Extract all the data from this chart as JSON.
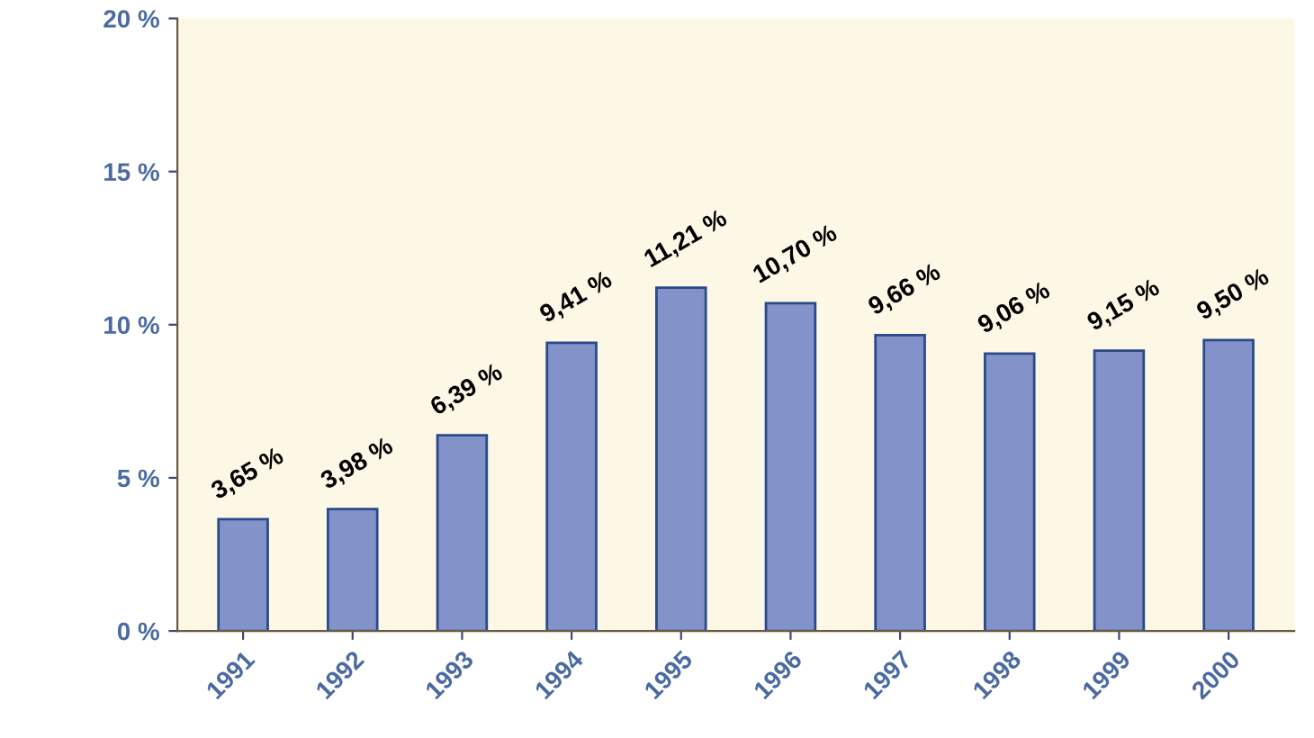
{
  "chart_data": {
    "type": "bar",
    "categories": [
      "1991",
      "1992",
      "1993",
      "1994",
      "1995",
      "1996",
      "1997",
      "1998",
      "1999",
      "2000"
    ],
    "values": [
      3.65,
      3.98,
      6.39,
      9.41,
      11.21,
      10.7,
      9.66,
      9.06,
      9.15,
      9.5
    ],
    "value_labels": [
      "3,65 %",
      "3,98 %",
      "6,39 %",
      "9,41 %",
      "11,21 %",
      "10,70 %",
      "9,66 %",
      "9,06 %",
      "9,15 %",
      "9,50 %"
    ],
    "color": "#8393c9",
    "ylim": [
      0,
      20
    ],
    "yticks": [
      {
        "value": 0,
        "label": "0 %"
      },
      {
        "value": 5,
        "label": "5 %"
      },
      {
        "value": 10,
        "label": "10 %"
      },
      {
        "value": 15,
        "label": "15 %"
      },
      {
        "value": 20,
        "label": "20 %"
      }
    ],
    "grid": false
  }
}
